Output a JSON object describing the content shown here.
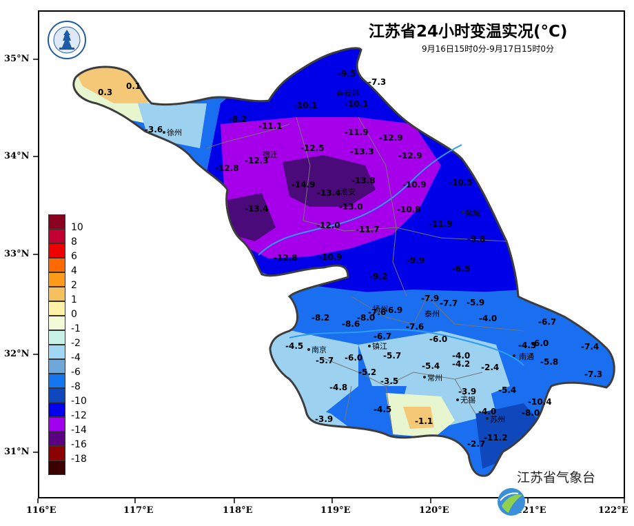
{
  "title": "江苏省24小时变温实况(°C)",
  "subtitle": "9月16日15时0分-9月17日15时0分",
  "watermark": "江苏省气象台",
  "lat_labels": [
    "35°N",
    "34°N",
    "33°N",
    "32°N",
    "31°N"
  ],
  "lon_labels": [
    "116°E",
    "117°E",
    "118°E",
    "119°E",
    "120°E",
    "121°E",
    "122°E"
  ],
  "legend": {
    "labels": [
      "10",
      "8",
      "6",
      "4",
      "2",
      "1",
      "0",
      "-1",
      "-2",
      "-4",
      "-6",
      "-8",
      "-10",
      "-12",
      "-14",
      "-16",
      "-18"
    ],
    "colors": [
      "#8b0021",
      "#c40030",
      "#ee0000",
      "#ff6a00",
      "#ff9a1a",
      "#f5c060",
      "#fff2a8",
      "#f2fbd8",
      "#c8f2e6",
      "#a0d7f2",
      "#6ea8d8",
      "#1577f0",
      "#0f48bd",
      "#0000ee",
      "#a000ee",
      "#5b0080",
      "#8b0000",
      "#3d0000"
    ]
  },
  "colors": {
    "border": "#3c3c3c",
    "river": "#2d9cf0",
    "warm": "#f5c878",
    "mild": "#e8f6d0",
    "cool": "#9cd2f0",
    "cold": "#1a6ef0",
    "colder": "#0000e8",
    "purple": "#a600ea",
    "deep": "#4b0a7a"
  },
  "cities": [
    {
      "name": "徐州"
    },
    {
      "name": "连云港"
    },
    {
      "name": "宿迁"
    },
    {
      "name": "淮安"
    },
    {
      "name": "盐城"
    },
    {
      "name": "扬州"
    },
    {
      "name": "泰州"
    },
    {
      "name": "镇江"
    },
    {
      "name": "南京"
    },
    {
      "name": "南通"
    },
    {
      "name": "常州"
    },
    {
      "name": "无锡"
    },
    {
      "name": "苏州"
    }
  ],
  "values": [
    "0.3",
    "0.1",
    "-3.6",
    "-9.5",
    "-7.3",
    "-10.1",
    "-10.1",
    "-8.2",
    "-11.1",
    "-11.9",
    "-12.9",
    "-12.5",
    "-13.3",
    "-12.9",
    "-12.3",
    "-12.8",
    "-14.9",
    "-13.4",
    "-13.8",
    "-10.9",
    "-10.5",
    "-13.4",
    "-13.0",
    "-10.8",
    "-12.0",
    "-11.7",
    "-11.9",
    "-9.8",
    "-12.8",
    "-10.9",
    "-9.9",
    "-6.5",
    "-9.2",
    "-7.9",
    "-7.7",
    "-5.9",
    "-7.6",
    "-6.9",
    "-8.2",
    "-8.6",
    "-8.0",
    "-4.0",
    "-6.7",
    "-6.7",
    "-7.6",
    "-6.0",
    "-4.3",
    "-6.0",
    "-7.4",
    "-4.5",
    "-5.7",
    "-6.0",
    "-5.7",
    "-4.0",
    "-5.8",
    "-5.4",
    "-4.2",
    "-2.4",
    "-7.3",
    "-5.2",
    "-3.5",
    "-4.8",
    "-3.9",
    "-5.4",
    "-10.4",
    "-4.5",
    "-4.0",
    "-8.0",
    "-3.9",
    "-1.1",
    "-2.7",
    "-11.2"
  ]
}
